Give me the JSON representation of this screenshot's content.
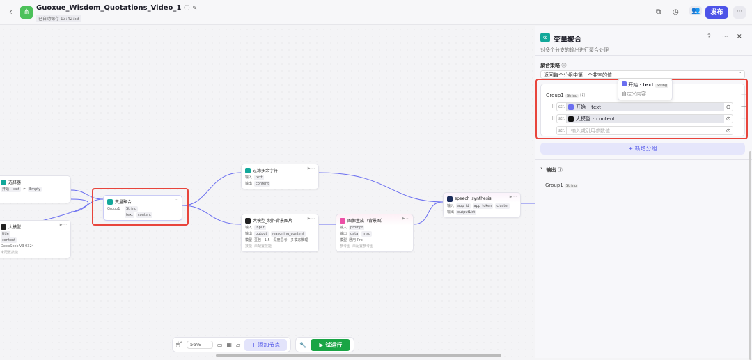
{
  "header": {
    "back": "‹",
    "title": "Guoxue_Wisdom_Quotations_Video_1",
    "saved": "已自动保存 13:42:53",
    "publish": "发布",
    "more": "···"
  },
  "nodes": {
    "selector": {
      "title": "选择器",
      "left": "开始 - text",
      "op": "≠",
      "right": "Empty"
    },
    "llm": {
      "title": "大模型",
      "out1": "title",
      "out2": "content",
      "model": "DeepSeek-V3 0324",
      "skill": "未配置技能"
    },
    "aggregate": {
      "title": "变量聚合",
      "group": "Group1",
      "type": "String",
      "v1": "text",
      "v2": "content"
    },
    "filter": {
      "title": "过滤多余字符",
      "in_label": "输入",
      "in": "text",
      "out_label": "输出",
      "out": "content"
    },
    "llm_bg": {
      "title": "大模型_制作背景图片",
      "in_label": "输入",
      "in": "input",
      "out_label": "输出",
      "out1": "output",
      "out2": "reasoning_content",
      "model_label": "模型",
      "model": "豆包 · 1.5 · 深度思考 · 多模态推理",
      "skill_label": "技能",
      "skill": "未配置技能"
    },
    "image": {
      "title": "图像生成（背景图）",
      "in_label": "输入",
      "in": "prompt",
      "out_label": "输出",
      "out1": "data",
      "out2": "msg",
      "model_label": "模型",
      "model": "通用-Pro",
      "ref_label": "参考图",
      "ref": "未配置参考图"
    },
    "speech": {
      "title": "speech_synthesis",
      "in_label": "输入",
      "in1": "app_id",
      "in2": "app_token",
      "in3": "cluster",
      "out_label": "输出",
      "out": "outputList"
    }
  },
  "toolbar": {
    "zoom": "56%",
    "add_node": "+ 添加节点",
    "run": "▶ 试运行"
  },
  "panel": {
    "title": "变量聚合",
    "desc": "对多个分支的输出进行聚合处理",
    "strategy_label": "聚合策略",
    "strategy": "返回每个分组中第一个非空的值",
    "group": {
      "name": "Group1",
      "type": "String",
      "vars": [
        {
          "prefix": "str.",
          "source": "开始",
          "field": "text"
        },
        {
          "prefix": "str.",
          "source": "大模型",
          "field": "content"
        }
      ],
      "empty_prefix": "str.",
      "placeholder": "输入或引用参数值"
    },
    "tooltip": {
      "source": "开始",
      "field": "text",
      "type": "String",
      "desc": "自定义内容"
    },
    "add_group": "+ 新增分组",
    "output_label": "输出",
    "output_name": "Group1",
    "output_type": "String"
  },
  "colors": {
    "accent": "#4d53e8",
    "highlight": "#e8453c",
    "run": "#1aa545"
  }
}
